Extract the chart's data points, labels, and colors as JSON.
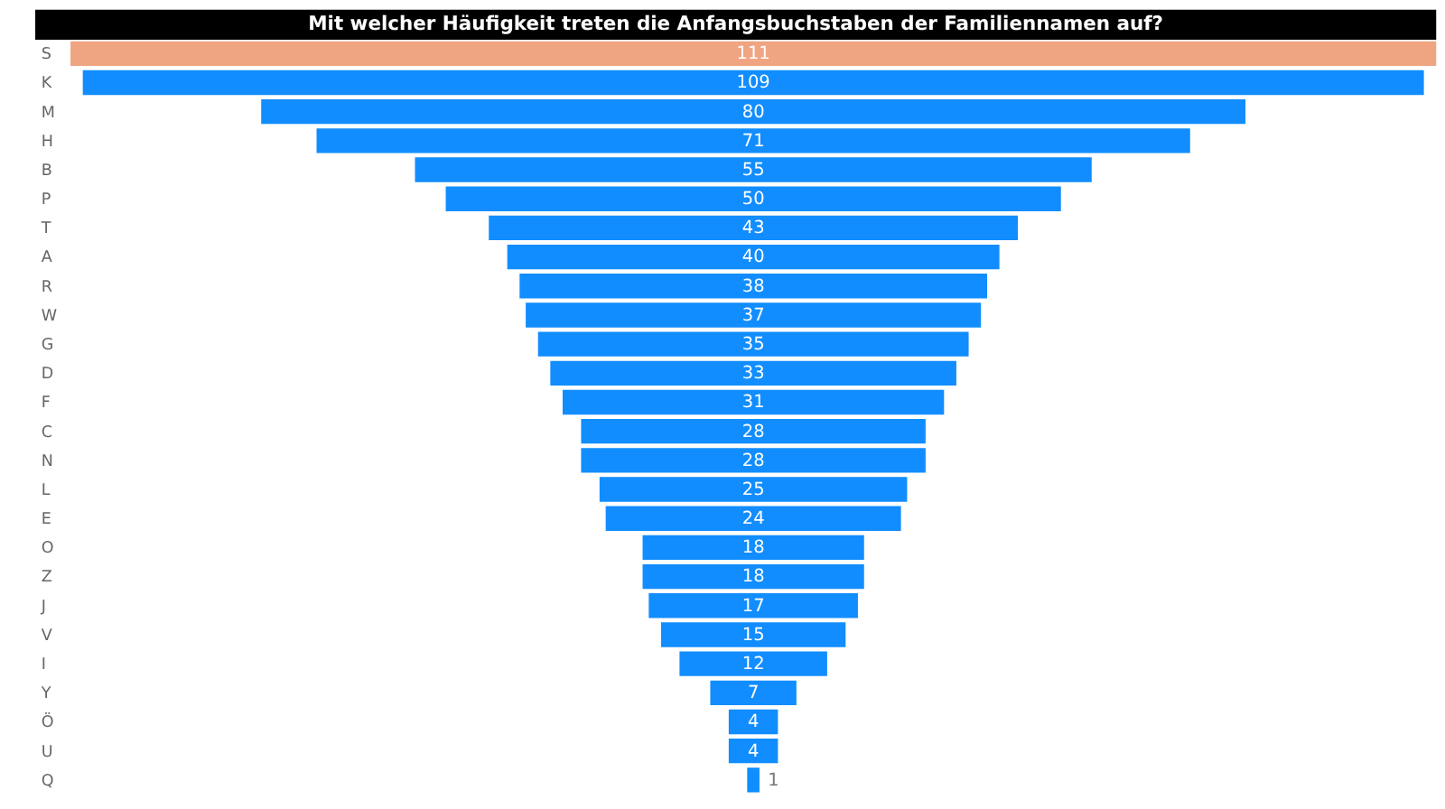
{
  "chart_data": {
    "type": "other",
    "title": "Mit welcher Häufigkeit treten die Anfangsbuchstaben der Familiennamen auf?",
    "categories": [
      "S",
      "K",
      "M",
      "H",
      "B",
      "P",
      "T",
      "A",
      "R",
      "W",
      "G",
      "D",
      "F",
      "C",
      "N",
      "L",
      "E",
      "O",
      "Z",
      "J",
      "V",
      "I",
      "Y",
      "Ö",
      "U",
      "Q"
    ],
    "values": [
      111,
      109,
      80,
      71,
      55,
      50,
      43,
      40,
      38,
      37,
      35,
      33,
      31,
      28,
      28,
      25,
      24,
      18,
      18,
      17,
      15,
      12,
      7,
      4,
      4,
      1
    ],
    "colors": [
      "#f0a582",
      "#118dff",
      "#118dff",
      "#118dff",
      "#118dff",
      "#118dff",
      "#118dff",
      "#118dff",
      "#118dff",
      "#118dff",
      "#118dff",
      "#118dff",
      "#118dff",
      "#118dff",
      "#118dff",
      "#118dff",
      "#118dff",
      "#118dff",
      "#118dff",
      "#118dff",
      "#118dff",
      "#118dff",
      "#118dff",
      "#118dff",
      "#118dff",
      "#118dff"
    ],
    "data_labels": true
  }
}
